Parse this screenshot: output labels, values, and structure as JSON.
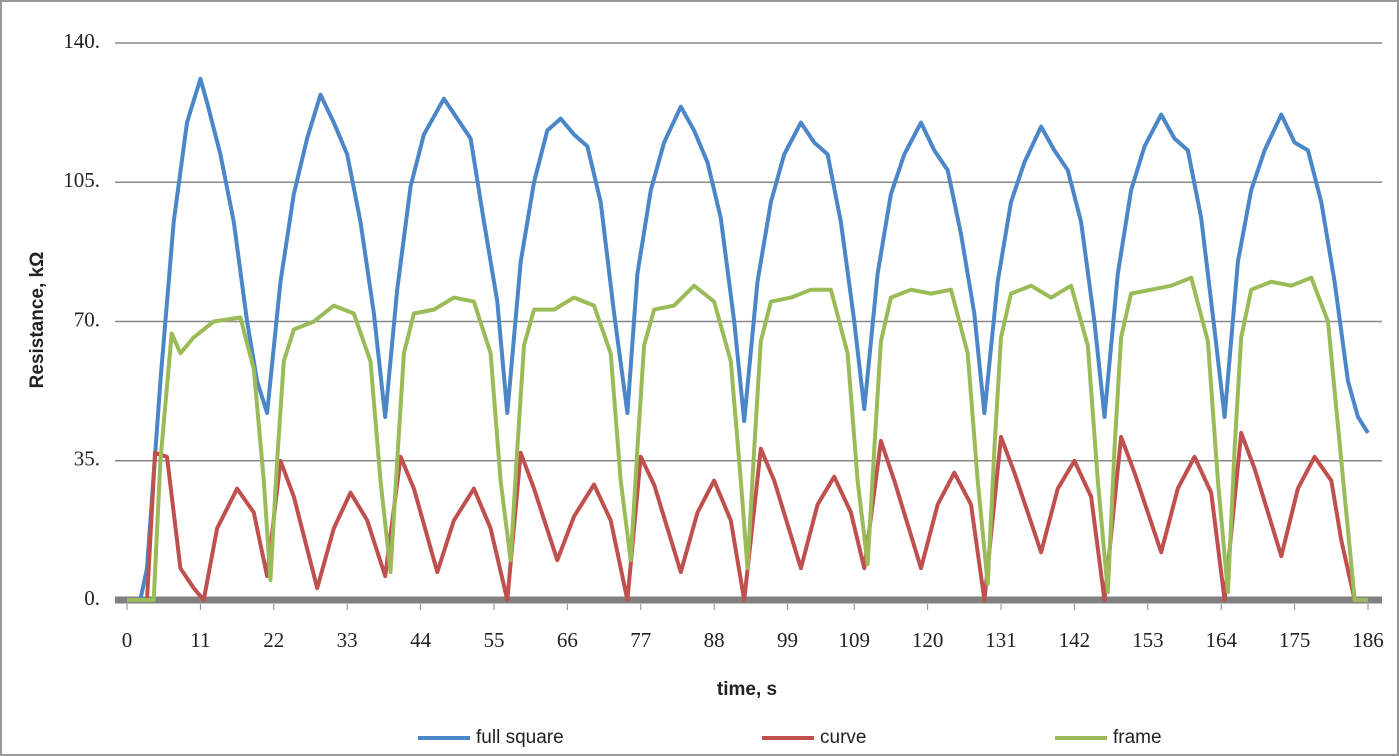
{
  "chart_data": {
    "type": "line",
    "y_label": "Resistance, kΩ",
    "x_label": "time, s",
    "ylim": [
      0,
      140
    ],
    "yticks": [
      {
        "value": 0,
        "label": "0."
      },
      {
        "value": 35,
        "label": "35."
      },
      {
        "value": 70,
        "label": "70."
      },
      {
        "value": 105,
        "label": "105."
      },
      {
        "value": 140,
        "label": "140."
      }
    ],
    "xlim": [
      0,
      186
    ],
    "xticks": [
      0,
      11,
      22,
      33,
      44,
      55,
      66,
      77,
      88,
      99,
      109,
      120,
      131,
      142,
      153,
      164,
      175,
      186
    ],
    "grid": true,
    "legend": "bottom",
    "series": [
      {
        "name": "full square",
        "color": "#4a86c8",
        "x": [
          0,
          2,
          3,
          5,
          7,
          9,
          11,
          12,
          14,
          16,
          18,
          19.5,
          21,
          23,
          25,
          27,
          29,
          31,
          33,
          35,
          37,
          38.7,
          40.5,
          42.5,
          44.5,
          47.5,
          49.5,
          51.5,
          53.5,
          55.5,
          57,
          59,
          61,
          63,
          65,
          67,
          69,
          71,
          73,
          75,
          76.5,
          78.5,
          80.5,
          83,
          85,
          87,
          89,
          91,
          92.5,
          94.5,
          96.5,
          98.5,
          101,
          103,
          105,
          107,
          109,
          110.5,
          112.5,
          114.5,
          116.5,
          119,
          121,
          123,
          125,
          127,
          128.5,
          130.5,
          132.5,
          134.5,
          137,
          139,
          141,
          143,
          145,
          146.5,
          148.5,
          150.5,
          152.5,
          155,
          157,
          159,
          161,
          163,
          164.5,
          166.5,
          168.5,
          170.5,
          173,
          175,
          177,
          179,
          181,
          183,
          184.5,
          186
        ],
        "values": [
          0,
          0,
          8,
          55,
          95,
          120,
          131,
          125,
          112,
          95,
          70,
          55,
          47,
          80,
          102,
          116,
          127,
          120,
          112,
          95,
          72,
          46,
          78,
          104,
          117,
          126,
          121,
          116,
          95,
          75,
          47,
          85,
          105,
          118,
          121,
          117,
          114,
          100,
          72,
          47,
          82,
          103,
          115,
          124,
          118,
          110,
          96,
          70,
          45,
          80,
          100,
          112,
          120,
          115,
          112,
          95,
          70,
          48,
          82,
          102,
          112,
          120,
          113,
          108,
          92,
          72,
          47,
          80,
          100,
          110,
          119,
          113,
          108,
          95,
          70,
          46,
          82,
          103,
          114,
          122,
          116,
          113,
          96,
          68,
          46,
          85,
          103,
          113,
          122,
          115,
          113,
          100,
          80,
          55,
          46,
          42
        ]
      },
      {
        "name": "curve",
        "color": "#c0504d",
        "x": [
          0,
          3,
          4.2,
          6,
          8,
          10,
          11.5,
          13.5,
          16.5,
          19,
          21,
          23,
          25,
          28.5,
          31,
          33.5,
          36,
          38.7,
          41,
          43,
          46.5,
          49,
          52,
          54.5,
          57,
          59,
          61,
          64.5,
          67,
          70,
          72.5,
          75,
          77,
          79,
          83,
          85.5,
          88,
          90.5,
          92.5,
          95,
          97,
          101,
          103.5,
          106,
          108.5,
          110.5,
          113,
          115,
          119,
          121.5,
          124,
          126.5,
          128.5,
          131,
          133,
          137,
          139.5,
          142,
          144.5,
          146.5,
          149,
          151,
          155,
          157.5,
          160,
          162.5,
          164.5,
          167,
          169,
          173,
          175.5,
          178,
          180.5,
          182,
          184,
          186
        ],
        "values": [
          0,
          0,
          37,
          36,
          8,
          3,
          0,
          18,
          28,
          22,
          6,
          35,
          26,
          3,
          18,
          27,
          20,
          6,
          36,
          28,
          7,
          20,
          28,
          18,
          0,
          37,
          28,
          10,
          21,
          29,
          20,
          0,
          36,
          29,
          7,
          22,
          30,
          20,
          0,
          38,
          30,
          8,
          24,
          31,
          22,
          8,
          40,
          30,
          8,
          24,
          32,
          24,
          0,
          41,
          32,
          12,
          28,
          35,
          26,
          0,
          41,
          32,
          12,
          28,
          36,
          27,
          0,
          42,
          33,
          11,
          28,
          36,
          30,
          15,
          0,
          0
        ]
      },
      {
        "name": "frame",
        "color": "#9bbb59",
        "x": [
          0,
          3,
          4,
          5,
          6.7,
          8,
          10,
          13,
          17,
          19,
          20.5,
          21.5,
          22.5,
          23.5,
          25,
          28,
          31,
          34,
          36.5,
          38,
          39.5,
          40.5,
          41.5,
          43,
          46,
          49,
          52,
          54.5,
          56,
          57.5,
          58.5,
          59.5,
          61,
          64,
          67,
          70,
          72.5,
          74,
          75.5,
          76.5,
          77.5,
          79,
          82,
          85,
          88,
          90.5,
          92,
          93,
          94,
          95,
          96.5,
          99.5,
          102.5,
          105.5,
          108,
          109.5,
          111,
          112,
          113,
          114.5,
          117.5,
          120.5,
          123.5,
          126,
          127.5,
          129,
          130,
          131,
          132.5,
          135.5,
          138.5,
          141.5,
          144,
          145.5,
          147,
          148,
          149,
          150.5,
          153.5,
          156.5,
          159.5,
          162,
          163.5,
          165,
          166,
          167,
          168.5,
          171.5,
          174.5,
          177.5,
          180,
          182,
          184,
          186
        ],
        "values": [
          0,
          0,
          0,
          35,
          67,
          62,
          66,
          70,
          71,
          58,
          30,
          5,
          35,
          60,
          68,
          70,
          74,
          72,
          60,
          30,
          7,
          35,
          62,
          72,
          73,
          76,
          75,
          62,
          30,
          10,
          38,
          64,
          73,
          73,
          76,
          74,
          62,
          30,
          10,
          38,
          64,
          73,
          74,
          79,
          75,
          60,
          30,
          8,
          38,
          65,
          75,
          76,
          78,
          78,
          62,
          30,
          9,
          38,
          65,
          76,
          78,
          77,
          78,
          62,
          30,
          4,
          38,
          66,
          77,
          79,
          76,
          79,
          64,
          30,
          2,
          38,
          66,
          77,
          78,
          79,
          81,
          65,
          30,
          2,
          38,
          66,
          78,
          80,
          79,
          81,
          70,
          35,
          0,
          0
        ]
      }
    ]
  }
}
